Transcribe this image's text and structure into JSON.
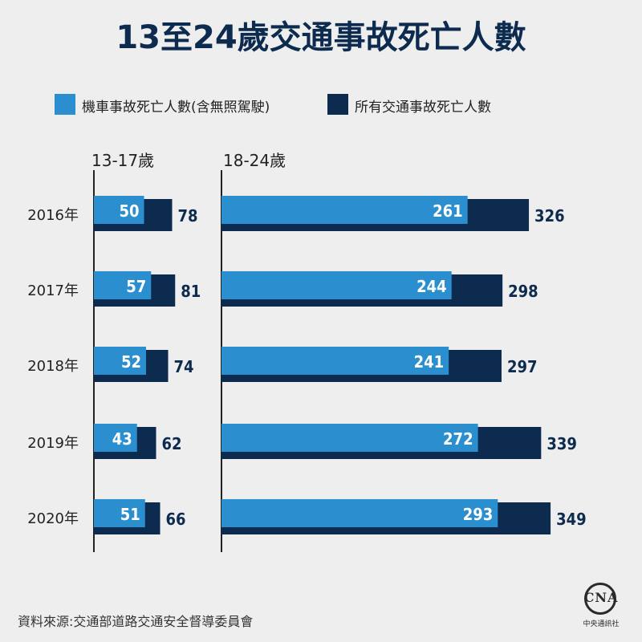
{
  "title": "13至24歲交通事故死亡人數",
  "legend": [
    {
      "label": "機車事故死亡人數(含無照駕駛)",
      "color": "#2b8fcf"
    },
    {
      "label": "所有交通事故死亡人數",
      "color": "#0d2b4f"
    }
  ],
  "chart_data": [
    {
      "type": "bar",
      "panel_title": "13-17歲",
      "categories": [
        "2016年",
        "2017年",
        "2018年",
        "2019年",
        "2020年"
      ],
      "series": [
        {
          "name": "機車事故死亡人數(含無照駕駛)",
          "values": [
            50,
            57,
            52,
            43,
            51
          ]
        },
        {
          "name": "所有交通事故死亡人數",
          "values": [
            78,
            81,
            74,
            62,
            66
          ]
        }
      ]
    },
    {
      "type": "bar",
      "panel_title": "18-24歲",
      "categories": [
        "2016年",
        "2017年",
        "2018年",
        "2019年",
        "2020年"
      ],
      "series": [
        {
          "name": "機車事故死亡人數(含無照駕駛)",
          "values": [
            261,
            244,
            241,
            272,
            293
          ]
        },
        {
          "name": "所有交通事故死亡人數",
          "values": [
            326,
            298,
            297,
            339,
            349
          ]
        }
      ]
    }
  ],
  "colors": {
    "motorcycle": "#2b8fcf",
    "all": "#0d2b4f",
    "axis": "#222222",
    "label_dark": "#0d2b4f",
    "label_light": "#ffffff"
  },
  "source": "資料來源:交通部道路交通安全督導委員會",
  "logo": {
    "text": "CNA",
    "subtitle": "中央通訊社"
  }
}
